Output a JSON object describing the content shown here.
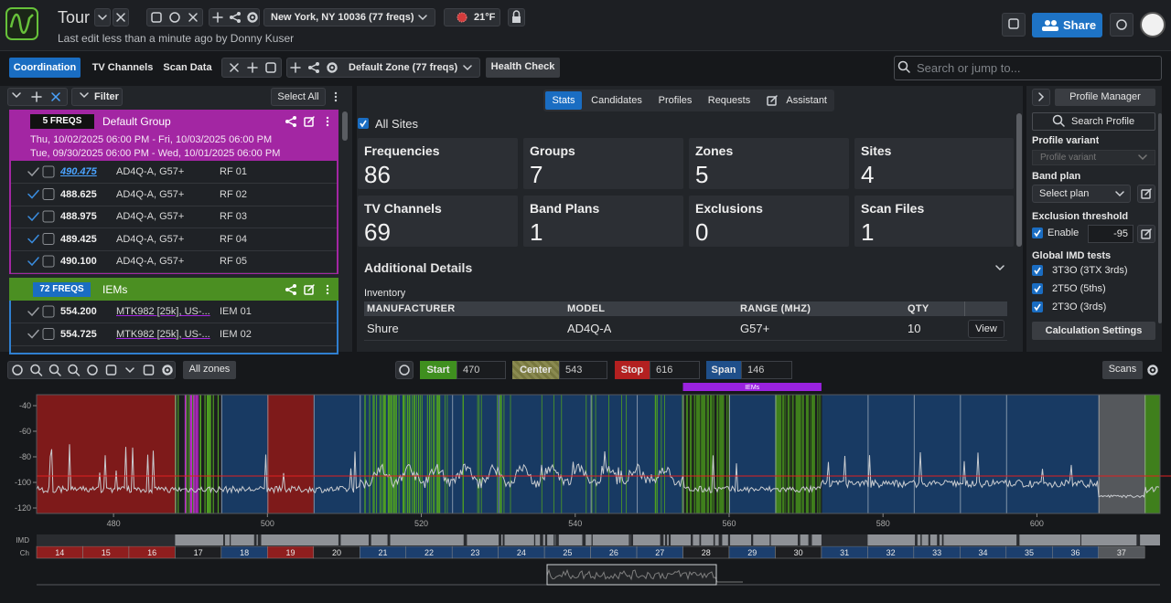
{
  "header": {
    "app": "Tour",
    "location": "New York, NY 10036 (77 freqs)",
    "weather": "21°F",
    "last_edit": "Last edit less than a minute ago by Donny Kuser",
    "share": "Share"
  },
  "toolbar": {
    "tabs": [
      "Coordination",
      "TV Channels",
      "Scan Data"
    ],
    "zone_select": "Default Zone (77 freqs)",
    "health_check": "Health Check",
    "search_placeholder": "Search or jump to..."
  },
  "left": {
    "filter": "Filter",
    "select_all": "Select All",
    "groups": [
      {
        "count": "5 FREQS",
        "name": "Default Group",
        "dates": [
          "Thu, 10/02/2025 06:00 PM - Fri, 10/03/2025 06:00 PM",
          "Tue, 09/30/2025 06:00 PM - Wed, 10/01/2025 06:00 PM"
        ],
        "rows": [
          [
            "490.475",
            "AD4Q-A, G57+",
            "RF 01"
          ],
          [
            "488.625",
            "AD4Q-A, G57+",
            "RF 02"
          ],
          [
            "488.975",
            "AD4Q-A, G57+",
            "RF 03"
          ],
          [
            "489.425",
            "AD4Q-A, G57+",
            "RF 04"
          ],
          [
            "490.100",
            "AD4Q-A, G57+",
            "RF 05"
          ]
        ]
      },
      {
        "count": "72 FREQS",
        "name": "IEMs",
        "dates": [],
        "rows": [
          [
            "554.200",
            "MTK982 [25k], US-...",
            "IEM 01"
          ],
          [
            "554.725",
            "MTK982 [25k], US-...",
            "IEM 02"
          ]
        ]
      }
    ]
  },
  "center": {
    "tabs": [
      "Stats",
      "Candidates",
      "Profiles",
      "Requests",
      "Assistant"
    ],
    "all_sites": "All Sites",
    "stats": [
      {
        "label": "Frequencies",
        "value": 86
      },
      {
        "label": "Groups",
        "value": 7
      },
      {
        "label": "Zones",
        "value": 5
      },
      {
        "label": "Sites",
        "value": 4
      },
      {
        "label": "TV Channels",
        "value": 69
      },
      {
        "label": "Band Plans",
        "value": 1
      },
      {
        "label": "Exclusions",
        "value": 0
      },
      {
        "label": "Scan Files",
        "value": 1
      }
    ],
    "additional": "Additional Details",
    "inventory": "Inventory",
    "table": {
      "columns": [
        "MANUFACTURER",
        "MODEL",
        "RANGE (MHZ)",
        "QTY"
      ],
      "rows": [
        [
          "Shure",
          "AD4Q-A",
          "G57+",
          10,
          "View"
        ]
      ]
    }
  },
  "right": {
    "profile_manager": "Profile Manager",
    "search_profile": "Search Profile",
    "profile_variant": "Profile variant",
    "variant_placeholder": "Profile variant",
    "band_plan": "Band plan",
    "select_plan": "Select plan",
    "exclusion": "Exclusion threshold",
    "enable": "Enable",
    "threshold": -95,
    "imd_title": "Global IMD tests",
    "imd": [
      "3T3O (3TX 3rds)",
      "2T5O (5ths)",
      "2T3O (3rds)"
    ],
    "calc": "Calculation Settings"
  },
  "spectrum": {
    "all_zones": "All zones",
    "start_label": "Start",
    "start": 470,
    "center_label": "Center",
    "center": 543,
    "stop_label": "Stop",
    "stop": 616,
    "span_label": "Span",
    "span": 146,
    "scans": "Scans",
    "iem_zone": "IEMs",
    "xticks": [
      480,
      500,
      520,
      540,
      560,
      580,
      600
    ],
    "yticks": [
      -40,
      -60,
      -80,
      -100,
      -120
    ],
    "imd_label": "IMD",
    "ch_label": "Ch",
    "channels": [
      14,
      15,
      16,
      17,
      18,
      19,
      20,
      21,
      22,
      23,
      24,
      25,
      26,
      27,
      28,
      29,
      30,
      31,
      32,
      33,
      34,
      35,
      36,
      37
    ]
  }
}
